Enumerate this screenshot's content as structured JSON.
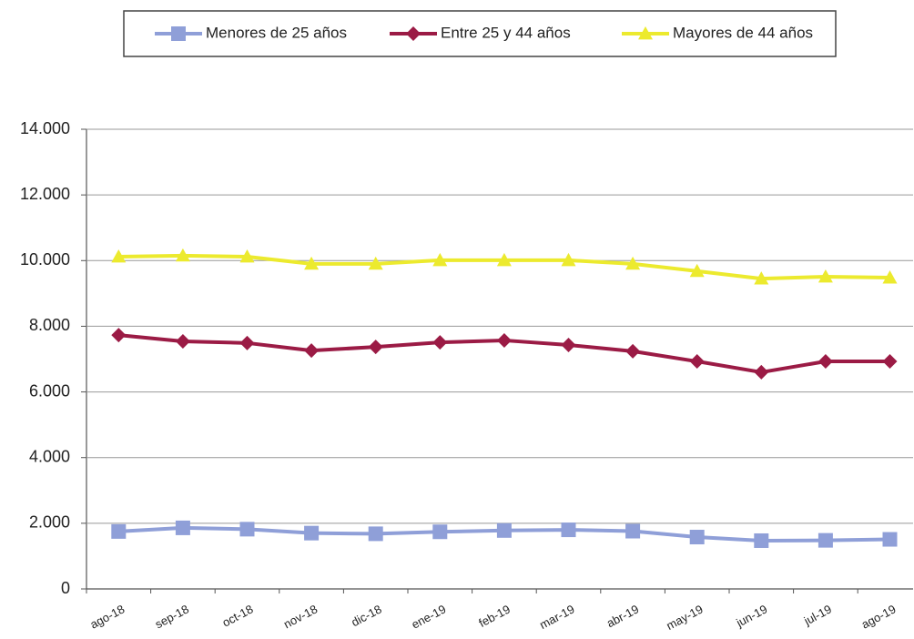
{
  "chart_data": {
    "type": "line",
    "categories": [
      "ago-18",
      "sep-18",
      "oct-18",
      "nov-18",
      "dic-18",
      "ene-19",
      "feb-19",
      "mar-19",
      "abr-19",
      "may-19",
      "jun-19",
      "jul-19",
      "ago-19"
    ],
    "series": [
      {
        "name": "Menores de 25 años",
        "color": "#8f9fd8",
        "marker": "square",
        "values": [
          1750,
          1860,
          1820,
          1700,
          1680,
          1740,
          1780,
          1800,
          1760,
          1580,
          1470,
          1480,
          1510
        ]
      },
      {
        "name": "Entre 25 y 44 años",
        "color": "#9b1b45",
        "marker": "diamond",
        "values": [
          7730,
          7540,
          7490,
          7260,
          7370,
          7510,
          7570,
          7430,
          7240,
          6930,
          6600,
          6930,
          6930
        ]
      },
      {
        "name": "Mayores de 44 años",
        "color": "#ecea2e",
        "marker": "triangle",
        "values": [
          10120,
          10150,
          10120,
          9900,
          9900,
          10010,
          10010,
          10010,
          9900,
          9680,
          9450,
          9510,
          9480
        ]
      }
    ],
    "ylim": [
      0,
      14000
    ],
    "yticks": [
      0,
      {
        "value": 2000,
        "label": "2.000"
      },
      {
        "value": 4000,
        "label": "4.000"
      },
      {
        "value": 6000,
        "label": "6.000"
      },
      {
        "value": 8000,
        "label": "8.000"
      },
      {
        "value": 10000,
        "label": "10.000"
      },
      {
        "value": 12000,
        "label": "12.000"
      },
      {
        "value": 14000,
        "label": "14.000"
      }
    ],
    "grid": true
  }
}
